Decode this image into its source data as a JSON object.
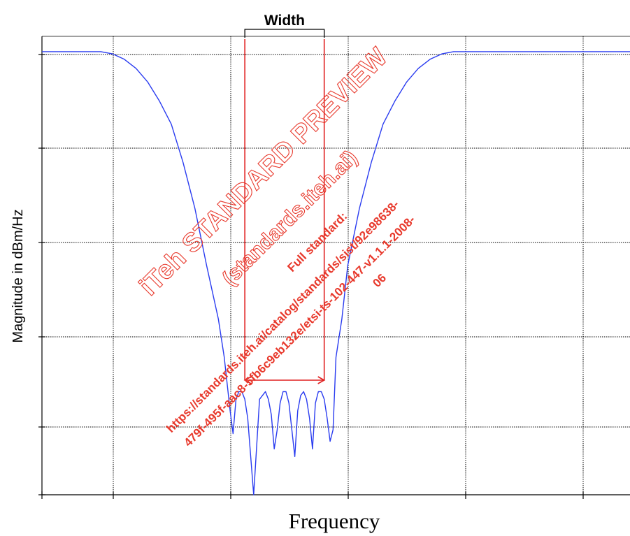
{
  "chart_data": {
    "type": "line",
    "title": "",
    "xlabel": "Frequency",
    "ylabel": "Magnitude in dBm/Hz",
    "grid": true,
    "grid_style": "dotted",
    "x_ticks_count": 6,
    "y_ticks_count": 6,
    "series": [
      {
        "color": "#2a3cf0",
        "x": [
          0.0,
          0.06,
          0.1,
          0.12,
          0.14,
          0.16,
          0.18,
          0.2,
          0.22,
          0.24,
          0.26,
          0.28,
          0.3,
          0.31,
          0.32,
          0.325,
          0.33,
          0.335,
          0.34,
          0.345,
          0.35,
          0.36,
          0.37,
          0.38,
          0.385,
          0.39,
          0.395,
          0.4,
          0.405,
          0.41,
          0.415,
          0.42,
          0.425,
          0.43,
          0.435,
          0.44,
          0.445,
          0.45,
          0.455,
          0.46,
          0.465,
          0.47,
          0.475,
          0.48,
          0.485,
          0.49,
          0.495,
          0.5,
          0.51,
          0.52,
          0.54,
          0.56,
          0.58,
          0.6,
          0.62,
          0.64,
          0.66,
          0.68,
          0.7,
          0.72,
          0.76,
          0.8,
          0.86,
          0.94,
          1.0
        ],
        "y": [
          0.0,
          0.0,
          0.0,
          -0.03,
          -0.1,
          -0.22,
          -0.4,
          -0.65,
          -0.95,
          -1.45,
          -2.05,
          -2.8,
          -3.5,
          -4.0,
          -4.7,
          -5.0,
          -4.55,
          -4.45,
          -4.45,
          -4.55,
          -4.8,
          -5.8,
          -4.55,
          -4.45,
          -4.55,
          -4.75,
          -5.2,
          -4.95,
          -4.6,
          -4.45,
          -4.45,
          -4.6,
          -4.95,
          -5.3,
          -4.7,
          -4.5,
          -4.45,
          -4.55,
          -4.8,
          -5.2,
          -4.6,
          -4.45,
          -4.45,
          -4.55,
          -4.8,
          -5.1,
          -4.95,
          -4.0,
          -3.5,
          -2.8,
          -2.05,
          -1.45,
          -0.95,
          -0.65,
          -0.4,
          -0.22,
          -0.1,
          -0.03,
          0.0,
          0.0,
          0.0,
          0.0,
          0.0,
          0.0,
          0.0
        ]
      }
    ],
    "annotation": {
      "label": "Width",
      "color": "#e02020",
      "x_start": 0.345,
      "x_end": 0.48,
      "y_level": -4.3
    },
    "ylim": [
      -5.8,
      0.2
    ],
    "xlim": [
      0.0,
      1.0
    ]
  },
  "watermark": {
    "line1": "iTeh STANDARD PREVIEW",
    "line2": "(standards.iteh.ai)",
    "line3": "Full standard:",
    "line4": "https://standards.iteh.ai/catalog/standards/sist/92e98638-",
    "line5": "479f-495f-aac8-5fb6c9eb132e/etsi-ts-102-447-v1.1.1-2008-",
    "line6": "06",
    "color": "#e8392c"
  }
}
